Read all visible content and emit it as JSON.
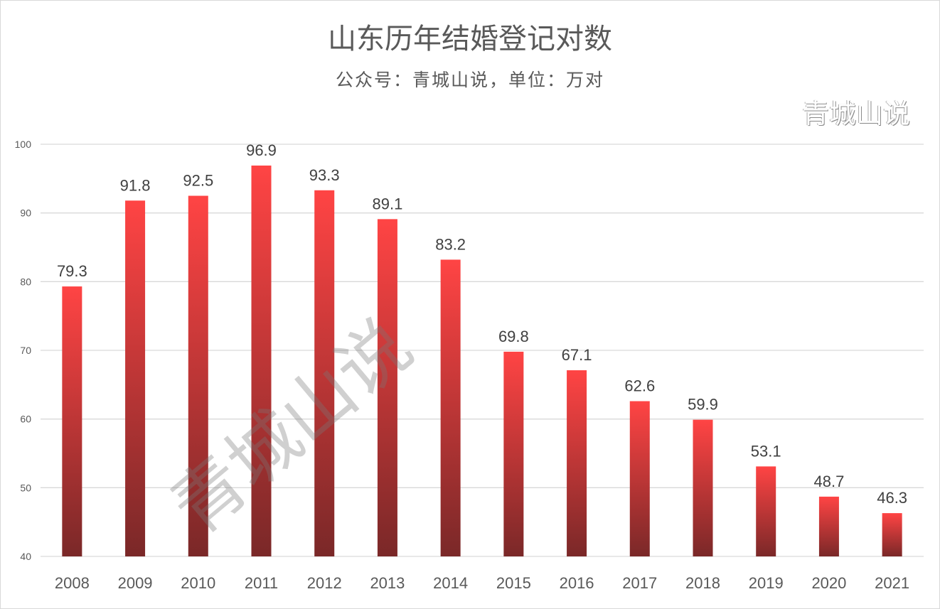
{
  "chart_data": {
    "type": "bar",
    "title": "山东历年结婚登记对数",
    "subtitle": "公众号：青城山说，单位：万对",
    "categories": [
      "2008",
      "2009",
      "2010",
      "2011",
      "2012",
      "2013",
      "2014",
      "2015",
      "2016",
      "2017",
      "2018",
      "2019",
      "2020",
      "2021"
    ],
    "values": [
      79.3,
      91.8,
      92.5,
      96.9,
      93.3,
      89.1,
      83.2,
      69.8,
      67.1,
      62.6,
      59.9,
      53.1,
      48.7,
      46.3
    ],
    "ylim": [
      40,
      100
    ],
    "yticks": [
      40,
      50,
      60,
      70,
      80,
      90,
      100
    ],
    "grid": true,
    "colors": {
      "bar_top": "#ff4444",
      "bar_bottom": "#7a2828"
    }
  },
  "watermark": "青城山说",
  "corner_watermark": "青城山说"
}
